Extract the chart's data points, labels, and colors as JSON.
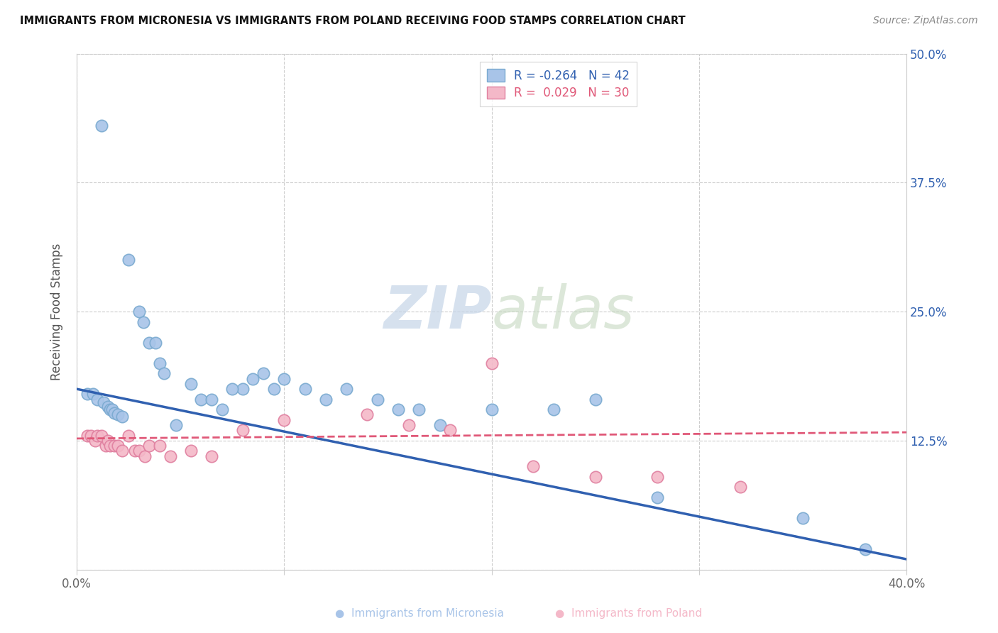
{
  "title": "IMMIGRANTS FROM MICRONESIA VS IMMIGRANTS FROM POLAND RECEIVING FOOD STAMPS CORRELATION CHART",
  "source": "Source: ZipAtlas.com",
  "ylabel": "Receiving Food Stamps",
  "x_min": 0.0,
  "x_max": 0.4,
  "y_min": 0.0,
  "y_max": 0.5,
  "x_ticks": [
    0.0,
    0.1,
    0.2,
    0.3,
    0.4
  ],
  "x_tick_labels": [
    "0.0%",
    "",
    "",
    "",
    "40.0%"
  ],
  "y_ticks_right": [
    0.0,
    0.125,
    0.25,
    0.375,
    0.5
  ],
  "y_tick_labels_right": [
    "",
    "12.5%",
    "25.0%",
    "37.5%",
    "50.0%"
  ],
  "micronesia_R": "-0.264",
  "micronesia_N": "42",
  "poland_R": "0.029",
  "poland_N": "30",
  "micronesia_color": "#a8c4e8",
  "micronesia_edge_color": "#7aaad0",
  "micronesia_line_color": "#3060b0",
  "poland_color": "#f4b8c8",
  "poland_edge_color": "#e080a0",
  "poland_line_color": "#e05878",
  "micronesia_scatter_x": [
    0.012,
    0.025,
    0.03,
    0.032,
    0.035,
    0.038,
    0.04,
    0.042,
    0.005,
    0.008,
    0.01,
    0.013,
    0.015,
    0.016,
    0.017,
    0.018,
    0.02,
    0.022,
    0.048,
    0.055,
    0.06,
    0.07,
    0.08,
    0.09,
    0.1,
    0.11,
    0.12,
    0.13,
    0.145,
    0.155,
    0.165,
    0.175,
    0.065,
    0.075,
    0.085,
    0.095,
    0.2,
    0.23,
    0.25,
    0.35,
    0.38,
    0.28
  ],
  "micronesia_scatter_y": [
    0.43,
    0.3,
    0.25,
    0.24,
    0.22,
    0.22,
    0.2,
    0.19,
    0.17,
    0.17,
    0.165,
    0.162,
    0.158,
    0.155,
    0.155,
    0.152,
    0.15,
    0.148,
    0.14,
    0.18,
    0.165,
    0.155,
    0.175,
    0.19,
    0.185,
    0.175,
    0.165,
    0.175,
    0.165,
    0.155,
    0.155,
    0.14,
    0.165,
    0.175,
    0.185,
    0.175,
    0.155,
    0.155,
    0.165,
    0.05,
    0.02,
    0.07
  ],
  "poland_scatter_x": [
    0.005,
    0.007,
    0.009,
    0.01,
    0.012,
    0.014,
    0.015,
    0.016,
    0.018,
    0.02,
    0.022,
    0.025,
    0.028,
    0.03,
    0.033,
    0.035,
    0.04,
    0.045,
    0.055,
    0.065,
    0.08,
    0.1,
    0.14,
    0.16,
    0.18,
    0.2,
    0.22,
    0.25,
    0.28,
    0.32
  ],
  "poland_scatter_y": [
    0.13,
    0.13,
    0.125,
    0.13,
    0.13,
    0.12,
    0.125,
    0.12,
    0.12,
    0.12,
    0.115,
    0.13,
    0.115,
    0.115,
    0.11,
    0.12,
    0.12,
    0.11,
    0.115,
    0.11,
    0.135,
    0.145,
    0.15,
    0.14,
    0.135,
    0.2,
    0.1,
    0.09,
    0.09,
    0.08
  ],
  "mic_line_x0": 0.0,
  "mic_line_y0": 0.175,
  "mic_line_x1": 0.4,
  "mic_line_y1": 0.01,
  "pol_line_x0": 0.0,
  "pol_line_y0": 0.127,
  "pol_line_x1": 0.4,
  "pol_line_y1": 0.133
}
